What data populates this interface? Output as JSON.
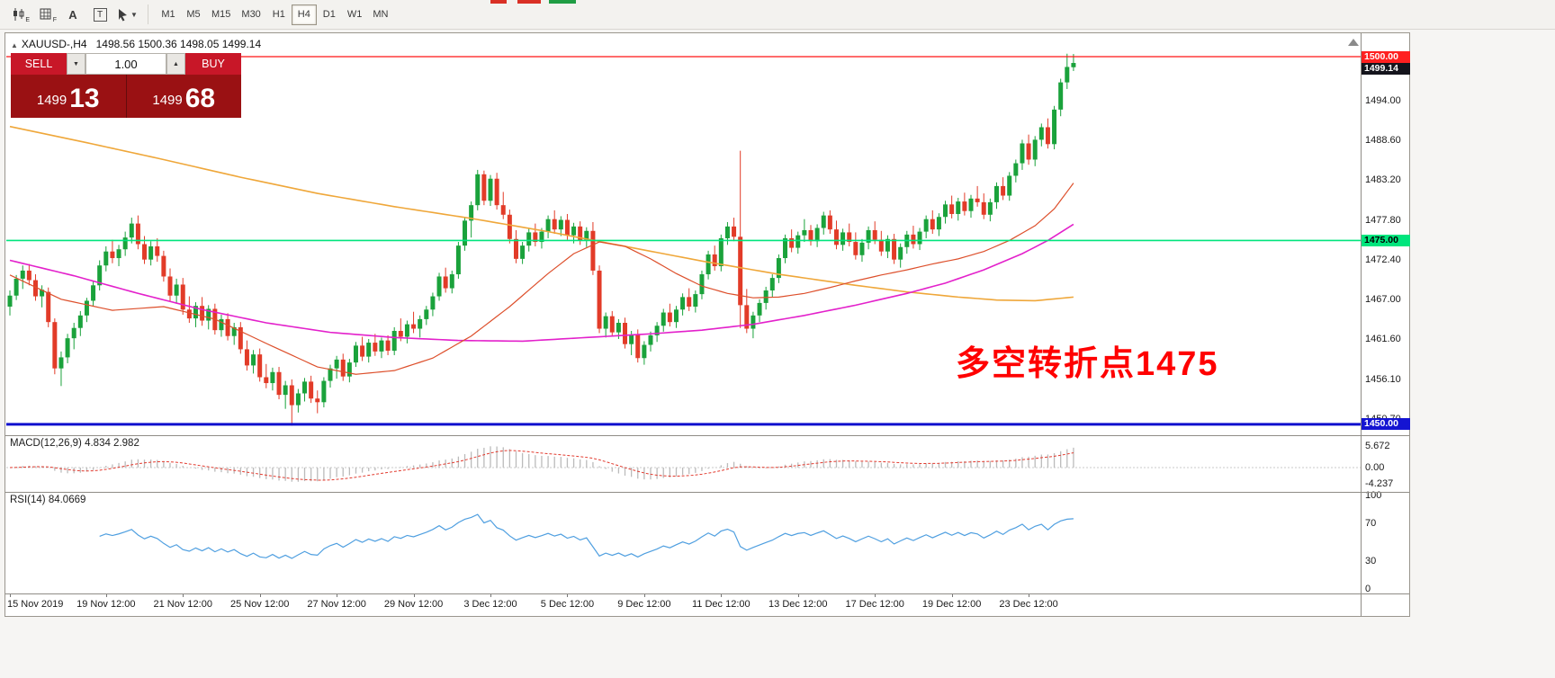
{
  "window": {
    "title_symbol": "XAUUSD-,H4",
    "title_ohlc": "1498.56 1500.36 1498.05 1499.14"
  },
  "toolbar": {
    "timeframes": [
      "M1",
      "M5",
      "M15",
      "M30",
      "H1",
      "H4",
      "D1",
      "W1",
      "MN"
    ],
    "active_timeframe": "H4",
    "tools": [
      {
        "label": "E"
      },
      {
        "label": "F"
      },
      {
        "label": "A"
      },
      {
        "label": "T"
      },
      {
        "label": ""
      }
    ]
  },
  "trade_panel": {
    "sell_label": "SELL",
    "buy_label": "BUY",
    "volume": "1.00",
    "bid_big": "1499",
    "bid_pips": "13",
    "ask_big": "1499",
    "ask_pips": "68"
  },
  "levels": {
    "resistance": "1500.00",
    "current_price": "1499.14",
    "pivot": "1475.00",
    "support": "1450.00"
  },
  "annotation": {
    "text": "多空转折点1475"
  },
  "price_scale": [
    "1494.00",
    "1488.60",
    "1483.20",
    "1477.80",
    "1472.40",
    "1467.00",
    "1461.60",
    "1456.10",
    "1450.70"
  ],
  "macd_panel": {
    "label": "MACD(12,26,9) 4.834 2.982",
    "scale": [
      "5.672",
      "0.00",
      "-4.237"
    ]
  },
  "rsi_panel": {
    "label": "RSI(14) 84.0669",
    "scale": [
      "100",
      "70",
      "30",
      "0"
    ]
  },
  "time_axis": [
    {
      "label": "15 Nov 2019",
      "i": 0
    },
    {
      "label": "19 Nov 12:00",
      "i": 15
    },
    {
      "label": "21 Nov 12:00",
      "i": 27
    },
    {
      "label": "25 Nov 12:00",
      "i": 39
    },
    {
      "label": "27 Nov 12:00",
      "i": 51
    },
    {
      "label": "29 Nov 12:00",
      "i": 63
    },
    {
      "label": "3 Dec 12:00",
      "i": 75
    },
    {
      "label": "5 Dec 12:00",
      "i": 87
    },
    {
      "label": "9 Dec 12:00",
      "i": 99
    },
    {
      "label": "11 Dec 12:00",
      "i": 111
    },
    {
      "label": "13 Dec 12:00",
      "i": 123
    },
    {
      "label": "17 Dec 12:00",
      "i": 135
    },
    {
      "label": "19 Dec 12:00",
      "i": 147
    },
    {
      "label": "23 Dec 12:00",
      "i": 159
    }
  ],
  "chart_data": {
    "type": "candlestick",
    "symbol": "XAUUSD-",
    "timeframe": "H4",
    "ohlc_current": {
      "open": 1498.56,
      "high": 1500.36,
      "low": 1498.05,
      "close": 1499.14
    },
    "price_range_visible": [
      1449.0,
      1501.6
    ],
    "levels": {
      "resistance": 1500.0,
      "pivot": 1475.0,
      "support": 1450.0
    },
    "indicators": {
      "macd": {
        "fast": 12,
        "slow": 26,
        "signal": 9,
        "last_main": 4.834,
        "last_signal": 2.982
      },
      "rsi": {
        "period": 14,
        "last": 84.0669
      }
    },
    "colors": {
      "up": "#1aa23b",
      "down": "#e23b28",
      "ma_slow": "#efa73a",
      "ma_medium": "#e321cb",
      "ma_fast": "#dd4f2b",
      "level_resistance": "#ff1414",
      "level_pivot": "#00e57d",
      "level_support": "#0e0ecd",
      "macd_histogram": "#bbbbbb",
      "macd_signal": "#e23a2e",
      "rsi_line": "#4f9fe0",
      "badge_resistance": "#ff2020",
      "badge_current": "#14141c",
      "badge_pivot": "#00e57d",
      "badge_support": "#1414d2",
      "button_red": "#c81728",
      "panel_red": "#9a1113",
      "annotation": "#ff0000"
    },
    "candles": [
      [
        1466.0,
        1468.2,
        1464.8,
        1467.5
      ],
      [
        1467.5,
        1470.3,
        1466.9,
        1469.8
      ],
      [
        1469.8,
        1471.6,
        1468.4,
        1470.9
      ],
      [
        1470.9,
        1471.8,
        1468.9,
        1469.6
      ],
      [
        1469.6,
        1470.4,
        1466.8,
        1467.4
      ],
      [
        1467.4,
        1468.9,
        1465.9,
        1468.3
      ],
      [
        1468.0,
        1468.6,
        1463.2,
        1463.9
      ],
      [
        1463.9,
        1464.4,
        1456.8,
        1457.6
      ],
      [
        1457.6,
        1459.9,
        1455.2,
        1459.1
      ],
      [
        1459.1,
        1462.3,
        1458.3,
        1461.7
      ],
      [
        1461.7,
        1463.8,
        1460.2,
        1463.1
      ],
      [
        1463.1,
        1465.4,
        1462.0,
        1464.8
      ],
      [
        1464.8,
        1467.2,
        1463.9,
        1466.8
      ],
      [
        1466.8,
        1469.5,
        1466.1,
        1468.9
      ],
      [
        1468.9,
        1472.3,
        1468.2,
        1471.6
      ],
      [
        1471.6,
        1474.2,
        1470.8,
        1473.5
      ],
      [
        1473.5,
        1475.1,
        1471.9,
        1472.6
      ],
      [
        1472.6,
        1474.4,
        1471.5,
        1473.8
      ],
      [
        1473.8,
        1476.2,
        1472.9,
        1475.4
      ],
      [
        1475.4,
        1478.1,
        1474.6,
        1477.3
      ],
      [
        1477.3,
        1478.4,
        1473.8,
        1474.5
      ],
      [
        1474.5,
        1475.6,
        1471.8,
        1472.4
      ],
      [
        1472.4,
        1474.9,
        1471.6,
        1474.2
      ],
      [
        1474.2,
        1475.3,
        1472.1,
        1472.9
      ],
      [
        1472.9,
        1473.6,
        1469.4,
        1470.1
      ],
      [
        1470.1,
        1471.2,
        1466.8,
        1467.5
      ],
      [
        1467.5,
        1469.8,
        1466.4,
        1469.0
      ],
      [
        1469.0,
        1469.9,
        1464.9,
        1465.6
      ],
      [
        1465.6,
        1467.4,
        1463.8,
        1464.4
      ],
      [
        1464.4,
        1466.6,
        1463.2,
        1466.1
      ],
      [
        1466.1,
        1467.3,
        1463.4,
        1464.1
      ],
      [
        1464.1,
        1466.2,
        1462.9,
        1465.7
      ],
      [
        1465.7,
        1466.4,
        1462.2,
        1462.8
      ],
      [
        1462.8,
        1464.9,
        1461.9,
        1464.3
      ],
      [
        1464.3,
        1465.1,
        1461.4,
        1462.0
      ],
      [
        1462.0,
        1463.8,
        1460.8,
        1463.2
      ],
      [
        1463.2,
        1463.9,
        1459.6,
        1460.2
      ],
      [
        1460.2,
        1461.4,
        1457.3,
        1458.0
      ],
      [
        1458.0,
        1460.1,
        1456.9,
        1459.5
      ],
      [
        1459.5,
        1460.3,
        1455.8,
        1456.4
      ],
      [
        1456.4,
        1458.2,
        1454.9,
        1455.6
      ],
      [
        1455.6,
        1457.7,
        1454.6,
        1457.1
      ],
      [
        1457.1,
        1457.8,
        1453.4,
        1454.0
      ],
      [
        1454.0,
        1455.9,
        1452.1,
        1455.3
      ],
      [
        1455.3,
        1456.1,
        1449.8,
        1452.6
      ],
      [
        1452.6,
        1454.8,
        1451.6,
        1454.2
      ],
      [
        1454.2,
        1456.3,
        1453.1,
        1455.8
      ],
      [
        1455.8,
        1456.6,
        1452.9,
        1453.5
      ],
      [
        1453.5,
        1454.6,
        1451.5,
        1453.0
      ],
      [
        1453.0,
        1456.4,
        1452.3,
        1455.9
      ],
      [
        1455.9,
        1458.1,
        1455.0,
        1457.6
      ],
      [
        1457.6,
        1459.3,
        1456.2,
        1458.8
      ],
      [
        1458.8,
        1459.6,
        1455.9,
        1456.5
      ],
      [
        1456.5,
        1458.9,
        1455.7,
        1458.4
      ],
      [
        1458.4,
        1461.2,
        1457.8,
        1460.7
      ],
      [
        1460.7,
        1461.9,
        1458.6,
        1459.2
      ],
      [
        1459.2,
        1461.6,
        1458.4,
        1461.1
      ],
      [
        1461.1,
        1462.3,
        1459.3,
        1459.9
      ],
      [
        1459.9,
        1461.8,
        1459.0,
        1461.4
      ],
      [
        1461.4,
        1462.1,
        1459.4,
        1460.0
      ],
      [
        1460.0,
        1463.2,
        1459.4,
        1462.7
      ],
      [
        1462.7,
        1464.4,
        1461.3,
        1461.9
      ],
      [
        1461.9,
        1464.1,
        1461.0,
        1463.6
      ],
      [
        1463.6,
        1465.3,
        1462.4,
        1463.0
      ],
      [
        1463.0,
        1464.8,
        1461.8,
        1464.3
      ],
      [
        1464.3,
        1466.1,
        1463.5,
        1465.6
      ],
      [
        1465.6,
        1467.9,
        1464.7,
        1467.4
      ],
      [
        1467.4,
        1470.6,
        1466.8,
        1470.1
      ],
      [
        1470.1,
        1471.3,
        1467.9,
        1468.5
      ],
      [
        1468.5,
        1470.9,
        1467.8,
        1470.4
      ],
      [
        1470.4,
        1474.8,
        1469.8,
        1474.3
      ],
      [
        1474.3,
        1478.2,
        1473.6,
        1477.7
      ],
      [
        1477.7,
        1480.3,
        1475.4,
        1479.8
      ],
      [
        1479.8,
        1484.6,
        1479.1,
        1484.0
      ],
      [
        1484.0,
        1484.5,
        1479.8,
        1480.4
      ],
      [
        1480.4,
        1483.9,
        1479.7,
        1483.4
      ],
      [
        1483.4,
        1484.2,
        1479.2,
        1479.8
      ],
      [
        1479.8,
        1481.6,
        1477.9,
        1478.5
      ],
      [
        1478.5,
        1479.2,
        1474.6,
        1475.2
      ],
      [
        1475.2,
        1476.4,
        1471.9,
        1472.5
      ],
      [
        1472.5,
        1474.8,
        1471.8,
        1474.3
      ],
      [
        1474.3,
        1476.6,
        1473.5,
        1476.1
      ],
      [
        1476.1,
        1477.3,
        1474.2,
        1474.8
      ],
      [
        1474.8,
        1476.7,
        1473.9,
        1476.2
      ],
      [
        1476.2,
        1478.4,
        1475.3,
        1477.9
      ],
      [
        1477.9,
        1479.1,
        1475.9,
        1476.5
      ],
      [
        1476.5,
        1478.3,
        1475.6,
        1477.8
      ],
      [
        1477.8,
        1478.6,
        1475.1,
        1475.7
      ],
      [
        1475.7,
        1477.4,
        1474.6,
        1476.9
      ],
      [
        1476.9,
        1477.6,
        1474.4,
        1475.0
      ],
      [
        1475.0,
        1476.8,
        1474.1,
        1476.3
      ],
      [
        1476.3,
        1477.5,
        1470.3,
        1470.9
      ],
      [
        1470.9,
        1471.6,
        1462.4,
        1463.0
      ],
      [
        1463.0,
        1465.2,
        1461.8,
        1464.7
      ],
      [
        1464.7,
        1465.4,
        1461.9,
        1462.5
      ],
      [
        1462.5,
        1464.3,
        1461.6,
        1463.8
      ],
      [
        1463.8,
        1464.5,
        1460.3,
        1460.9
      ],
      [
        1460.9,
        1462.7,
        1459.4,
        1462.2
      ],
      [
        1462.2,
        1462.9,
        1458.4,
        1459.0
      ],
      [
        1459.0,
        1461.3,
        1458.1,
        1460.8
      ],
      [
        1460.8,
        1462.6,
        1459.9,
        1462.1
      ],
      [
        1462.1,
        1463.9,
        1461.2,
        1463.4
      ],
      [
        1463.4,
        1465.7,
        1462.6,
        1465.2
      ],
      [
        1465.2,
        1466.4,
        1463.3,
        1463.9
      ],
      [
        1463.9,
        1466.1,
        1463.1,
        1465.6
      ],
      [
        1465.6,
        1467.8,
        1464.8,
        1467.3
      ],
      [
        1467.3,
        1468.5,
        1465.4,
        1466.0
      ],
      [
        1466.0,
        1468.2,
        1465.2,
        1467.7
      ],
      [
        1467.7,
        1470.9,
        1467.0,
        1470.4
      ],
      [
        1470.4,
        1473.6,
        1469.7,
        1473.1
      ],
      [
        1473.1,
        1474.3,
        1470.9,
        1471.5
      ],
      [
        1471.5,
        1475.8,
        1470.8,
        1475.3
      ],
      [
        1475.3,
        1477.5,
        1474.4,
        1476.9
      ],
      [
        1476.9,
        1478.1,
        1474.9,
        1475.5
      ],
      [
        1475.5,
        1487.2,
        1463.1,
        1466.2
      ],
      [
        1466.2,
        1468.4,
        1462.4,
        1463.0
      ],
      [
        1463.0,
        1465.3,
        1461.7,
        1464.8
      ],
      [
        1464.8,
        1467.0,
        1463.9,
        1466.5
      ],
      [
        1466.5,
        1468.7,
        1465.6,
        1468.2
      ],
      [
        1468.2,
        1470.4,
        1467.3,
        1469.9
      ],
      [
        1469.9,
        1473.1,
        1469.2,
        1472.6
      ],
      [
        1472.6,
        1475.8,
        1471.9,
        1475.3
      ],
      [
        1475.3,
        1476.5,
        1473.4,
        1474.0
      ],
      [
        1474.0,
        1476.2,
        1473.2,
        1475.7
      ],
      [
        1475.7,
        1477.9,
        1474.8,
        1476.4
      ],
      [
        1476.4,
        1477.1,
        1474.3,
        1474.9
      ],
      [
        1474.9,
        1477.2,
        1474.1,
        1476.7
      ],
      [
        1476.7,
        1478.9,
        1475.8,
        1478.4
      ],
      [
        1478.4,
        1479.1,
        1475.9,
        1476.5
      ],
      [
        1476.5,
        1477.7,
        1473.8,
        1474.4
      ],
      [
        1474.4,
        1476.6,
        1473.6,
        1476.1
      ],
      [
        1476.1,
        1477.3,
        1474.2,
        1474.8
      ],
      [
        1474.8,
        1476.1,
        1472.4,
        1473.0
      ],
      [
        1473.0,
        1475.2,
        1472.1,
        1474.7
      ],
      [
        1474.7,
        1476.9,
        1473.8,
        1476.4
      ],
      [
        1476.4,
        1477.6,
        1474.5,
        1475.1
      ],
      [
        1475.1,
        1476.3,
        1472.9,
        1473.5
      ],
      [
        1473.5,
        1475.7,
        1472.6,
        1475.2
      ],
      [
        1475.2,
        1475.9,
        1471.8,
        1472.4
      ],
      [
        1472.4,
        1474.6,
        1471.3,
        1474.1
      ],
      [
        1474.1,
        1476.3,
        1473.2,
        1475.8
      ],
      [
        1475.8,
        1477.0,
        1473.9,
        1474.5
      ],
      [
        1474.5,
        1476.7,
        1473.7,
        1476.2
      ],
      [
        1476.2,
        1478.4,
        1475.3,
        1477.9
      ],
      [
        1477.9,
        1479.1,
        1475.9,
        1476.5
      ],
      [
        1476.5,
        1478.7,
        1475.6,
        1478.2
      ],
      [
        1478.2,
        1480.4,
        1477.3,
        1479.9
      ],
      [
        1479.9,
        1481.1,
        1478.0,
        1478.6
      ],
      [
        1478.6,
        1480.8,
        1477.7,
        1480.3
      ],
      [
        1480.3,
        1481.5,
        1478.4,
        1479.0
      ],
      [
        1479.0,
        1481.2,
        1478.1,
        1480.7
      ],
      [
        1480.7,
        1482.4,
        1479.6,
        1480.2
      ],
      [
        1480.2,
        1481.4,
        1477.9,
        1478.5
      ],
      [
        1478.5,
        1480.7,
        1477.6,
        1480.2
      ],
      [
        1480.2,
        1482.9,
        1479.3,
        1482.4
      ],
      [
        1482.4,
        1483.6,
        1480.5,
        1481.1
      ],
      [
        1481.1,
        1484.3,
        1480.4,
        1483.8
      ],
      [
        1483.8,
        1486.0,
        1482.9,
        1485.5
      ],
      [
        1485.5,
        1488.7,
        1484.6,
        1488.2
      ],
      [
        1488.2,
        1489.4,
        1485.3,
        1486.0
      ],
      [
        1486.0,
        1489.2,
        1485.1,
        1488.7
      ],
      [
        1488.7,
        1490.9,
        1487.8,
        1490.4
      ],
      [
        1490.4,
        1491.6,
        1487.5,
        1488.1
      ],
      [
        1488.1,
        1493.3,
        1487.4,
        1492.8
      ],
      [
        1492.8,
        1497.0,
        1491.9,
        1496.5
      ],
      [
        1496.5,
        1500.4,
        1495.6,
        1498.6
      ],
      [
        1498.56,
        1500.36,
        1498.05,
        1499.14
      ]
    ],
    "ma_slow_points": [
      [
        0,
        1490.5
      ],
      [
        12,
        1488.3
      ],
      [
        24,
        1486.0
      ],
      [
        36,
        1483.6
      ],
      [
        48,
        1481.4
      ],
      [
        60,
        1479.6
      ],
      [
        72,
        1478.0
      ],
      [
        84,
        1476.2
      ],
      [
        96,
        1474.2
      ],
      [
        108,
        1472.2
      ],
      [
        120,
        1470.4
      ],
      [
        132,
        1468.9
      ],
      [
        140,
        1468.0
      ],
      [
        148,
        1467.3
      ],
      [
        154,
        1466.9
      ],
      [
        160,
        1466.8
      ],
      [
        166,
        1467.3
      ]
    ],
    "ma_medium_points": [
      [
        0,
        1472.3
      ],
      [
        10,
        1470.2
      ],
      [
        20,
        1467.8
      ],
      [
        30,
        1465.6
      ],
      [
        40,
        1463.8
      ],
      [
        50,
        1462.5
      ],
      [
        60,
        1461.8
      ],
      [
        70,
        1461.4
      ],
      [
        80,
        1461.3
      ],
      [
        90,
        1461.8
      ],
      [
        100,
        1462.3
      ],
      [
        108,
        1462.8
      ],
      [
        116,
        1463.6
      ],
      [
        124,
        1464.8
      ],
      [
        132,
        1466.2
      ],
      [
        140,
        1467.8
      ],
      [
        146,
        1469.2
      ],
      [
        152,
        1471.0
      ],
      [
        158,
        1473.2
      ],
      [
        162,
        1475.0
      ],
      [
        166,
        1477.2
      ]
    ],
    "ma_fast_points": [
      [
        0,
        1470.3
      ],
      [
        8,
        1467.0
      ],
      [
        16,
        1465.5
      ],
      [
        24,
        1466.0
      ],
      [
        32,
        1464.3
      ],
      [
        40,
        1461.0
      ],
      [
        48,
        1457.8
      ],
      [
        54,
        1456.8
      ],
      [
        60,
        1457.3
      ],
      [
        66,
        1459.0
      ],
      [
        72,
        1462.0
      ],
      [
        78,
        1466.0
      ],
      [
        84,
        1470.5
      ],
      [
        88,
        1473.2
      ],
      [
        92,
        1474.8
      ],
      [
        96,
        1474.2
      ],
      [
        100,
        1472.5
      ],
      [
        104,
        1470.5
      ],
      [
        108,
        1468.8
      ],
      [
        112,
        1467.8
      ],
      [
        116,
        1467.2
      ],
      [
        120,
        1467.3
      ],
      [
        124,
        1467.8
      ],
      [
        128,
        1468.6
      ],
      [
        132,
        1469.5
      ],
      [
        136,
        1470.3
      ],
      [
        140,
        1471.0
      ],
      [
        144,
        1471.8
      ],
      [
        148,
        1472.5
      ],
      [
        152,
        1473.5
      ],
      [
        156,
        1475.0
      ],
      [
        160,
        1477.0
      ],
      [
        163,
        1479.3
      ],
      [
        166,
        1482.8
      ]
    ]
  }
}
